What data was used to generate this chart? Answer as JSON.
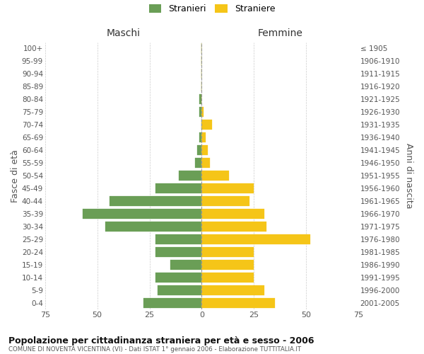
{
  "age_groups": [
    "0-4",
    "5-9",
    "10-14",
    "15-19",
    "20-24",
    "25-29",
    "30-34",
    "35-39",
    "40-44",
    "45-49",
    "50-54",
    "55-59",
    "60-64",
    "65-69",
    "70-74",
    "75-79",
    "80-84",
    "85-89",
    "90-94",
    "95-99",
    "100+"
  ],
  "birth_years": [
    "2001-2005",
    "1996-2000",
    "1991-1995",
    "1986-1990",
    "1981-1985",
    "1976-1980",
    "1971-1975",
    "1966-1970",
    "1961-1965",
    "1956-1960",
    "1951-1955",
    "1946-1950",
    "1941-1945",
    "1936-1940",
    "1931-1935",
    "1926-1930",
    "1921-1925",
    "1916-1920",
    "1911-1915",
    "1906-1910",
    "≤ 1905"
  ],
  "males": [
    28,
    21,
    22,
    15,
    22,
    22,
    46,
    57,
    44,
    22,
    11,
    3,
    2,
    1,
    0,
    1,
    1,
    0,
    0,
    0,
    0
  ],
  "females": [
    35,
    30,
    25,
    25,
    25,
    52,
    31,
    30,
    23,
    25,
    13,
    4,
    3,
    2,
    5,
    1,
    0,
    0,
    0,
    0,
    0
  ],
  "male_color": "#6a9e56",
  "female_color": "#f5c518",
  "title": "Popolazione per cittadinanza straniera per età e sesso - 2006",
  "subtitle": "COMUNE DI NOVENTA VICENTINA (VI) - Dati ISTAT 1° gennaio 2006 - Elaborazione TUTTITALIA.IT",
  "xlabel_left": "Maschi",
  "xlabel_right": "Femmine",
  "ylabel_left": "Fasce di età",
  "ylabel_right": "Anni di nascita",
  "legend_male": "Stranieri",
  "legend_female": "Straniere",
  "xlim": 75,
  "background_color": "#ffffff",
  "grid_color": "#cccccc"
}
